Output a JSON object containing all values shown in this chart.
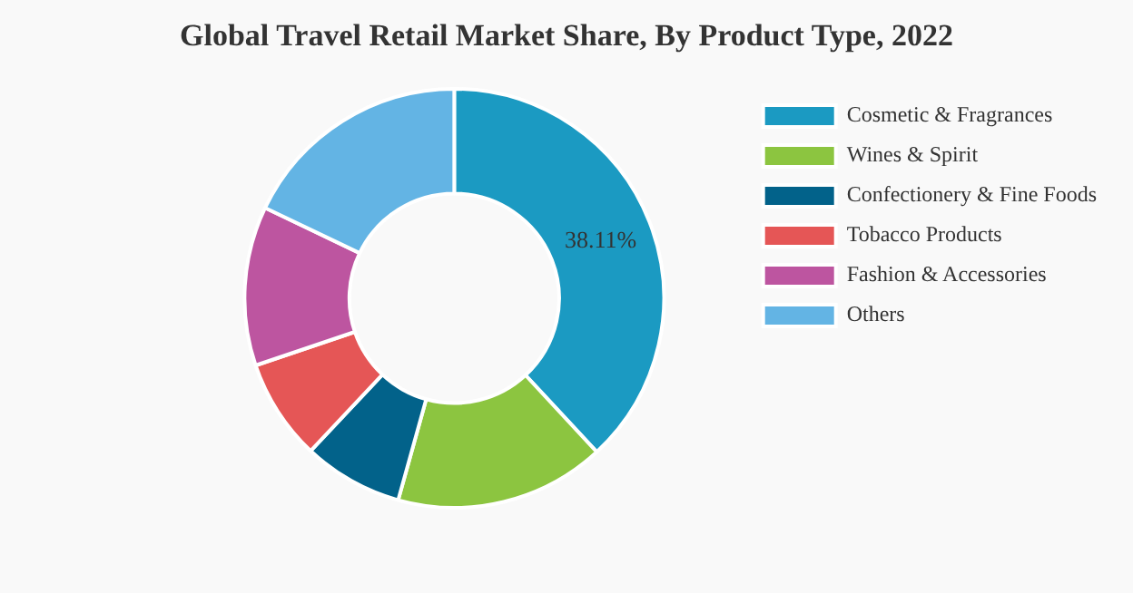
{
  "chart_data": {
    "type": "donut",
    "title": "Global Travel Retail Market Share, By Product Type, 2022",
    "categories": [
      "Cosmetic & Fragrances",
      "Wines & Spirit",
      "Confectionery & Fine Foods",
      "Tobacco Products",
      "Fashion & Accessories",
      "Others"
    ],
    "values": [
      38.11,
      16.2,
      7.7,
      7.8,
      12.3,
      17.89
    ],
    "colors": [
      "#1b9ac2",
      "#8cc540",
      "#02628a",
      "#e55656",
      "#bd55a0",
      "#63b4e4"
    ],
    "value_labels": [
      "38.11%",
      null,
      null,
      null,
      null,
      null
    ],
    "legend": "top right"
  }
}
